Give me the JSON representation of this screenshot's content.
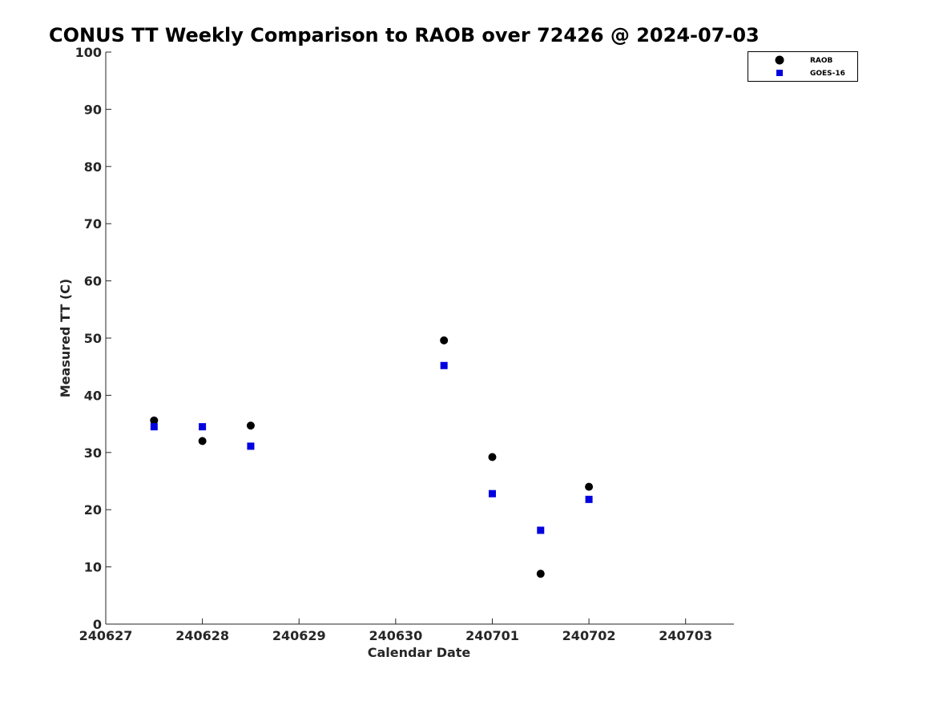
{
  "chart_data": {
    "type": "scatter",
    "title": "CONUS TT Weekly Comparison to RAOB over 72426 @ 2024-07-03",
    "xlabel": "Calendar Date",
    "ylabel": "Measured TT (C)",
    "x_ticks": [
      "240627",
      "240628",
      "240629",
      "240630",
      "240701",
      "240702",
      "240703"
    ],
    "y_ticks": [
      "0",
      "10",
      "20",
      "30",
      "40",
      "50",
      "60",
      "70",
      "80",
      "90",
      "100"
    ],
    "xlim": [
      0,
      6.5
    ],
    "ylim": [
      0,
      100
    ],
    "grid": false,
    "legend_position": "top-right",
    "series": [
      {
        "name": "RAOB",
        "marker": "circle",
        "color": "#000000",
        "points": [
          {
            "x": 0.5,
            "y": 35.6
          },
          {
            "x": 1.0,
            "y": 32.0
          },
          {
            "x": 1.5,
            "y": 34.7
          },
          {
            "x": 3.5,
            "y": 49.6
          },
          {
            "x": 4.0,
            "y": 29.2
          },
          {
            "x": 4.5,
            "y": 8.8
          },
          {
            "x": 5.0,
            "y": 24.0
          }
        ]
      },
      {
        "name": "GOES-16",
        "marker": "square",
        "color": "#0000e0",
        "points": [
          {
            "x": 0.5,
            "y": 34.5
          },
          {
            "x": 1.0,
            "y": 34.5
          },
          {
            "x": 1.5,
            "y": 31.1
          },
          {
            "x": 3.5,
            "y": 45.2
          },
          {
            "x": 4.0,
            "y": 22.8
          },
          {
            "x": 4.5,
            "y": 16.4
          },
          {
            "x": 5.0,
            "y": 21.8
          }
        ]
      }
    ]
  }
}
